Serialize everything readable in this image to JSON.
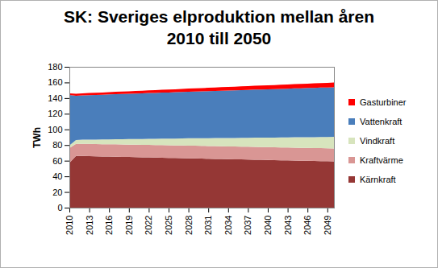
{
  "chart_data": {
    "type": "area",
    "title": "SK: Sveriges elproduktion mellan åren 2010 till 2050",
    "y_label": "TWh",
    "stacked": true,
    "grid": false,
    "legend": "right",
    "x": [
      2010,
      2011,
      2012,
      2013,
      2014,
      2015,
      2016,
      2017,
      2018,
      2019,
      2020,
      2021,
      2022,
      2023,
      2024,
      2025,
      2026,
      2027,
      2028,
      2029,
      2030,
      2031,
      2032,
      2033,
      2034,
      2035,
      2036,
      2037,
      2038,
      2039,
      2040,
      2041,
      2042,
      2043,
      2044,
      2045,
      2046,
      2047,
      2048,
      2049,
      2050
    ],
    "xlim": [
      2010,
      2050
    ],
    "xticks": [
      2010,
      2013,
      2016,
      2019,
      2022,
      2025,
      2028,
      2031,
      2034,
      2037,
      2040,
      2043,
      2046,
      2049
    ],
    "ylim": [
      0,
      180
    ],
    "yticks": [
      0,
      20,
      40,
      60,
      80,
      100,
      120,
      140,
      160,
      180
    ],
    "series": [
      {
        "name": "Kärnkraft",
        "color": "#953735",
        "values": [
          57,
          66.0,
          66.0,
          65.8,
          65.6,
          65.4,
          65.3,
          65.1,
          64.9,
          64.7,
          64.5,
          64.3,
          64.2,
          64.0,
          63.8,
          63.6,
          63.4,
          63.2,
          63.1,
          62.9,
          62.7,
          62.5,
          62.3,
          62.2,
          62.0,
          61.8,
          61.6,
          61.4,
          61.3,
          61.1,
          60.9,
          60.7,
          60.5,
          60.4,
          60.2,
          60.0,
          59.8,
          59.6,
          59.5,
          59.3,
          59.1
        ]
      },
      {
        "name": "Kraftvärme",
        "color": "#d99694",
        "values": [
          19,
          15.5,
          15.5,
          15.6,
          15.6,
          15.7,
          15.7,
          15.8,
          15.8,
          15.9,
          15.9,
          16.0,
          16.0,
          16.0,
          16.1,
          16.1,
          16.1,
          16.2,
          16.2,
          16.2,
          16.2,
          16.3,
          16.3,
          16.3,
          16.3,
          16.3,
          16.4,
          16.4,
          16.4,
          16.4,
          16.4,
          16.4,
          16.4,
          16.4,
          16.5,
          16.5,
          16.5,
          16.5,
          16.5,
          16.5,
          16.5
        ]
      },
      {
        "name": "Vindkraft",
        "color": "#d7e4bd",
        "values": [
          3.5,
          5.0,
          5.3,
          5.5,
          5.8,
          6.0,
          6.3,
          6.5,
          6.8,
          7.0,
          7.3,
          7.5,
          7.8,
          8.0,
          8.3,
          8.5,
          8.8,
          9.0,
          9.3,
          9.5,
          9.8,
          10.0,
          10.3,
          10.5,
          10.8,
          11.0,
          11.3,
          11.5,
          11.8,
          12.0,
          12.3,
          12.5,
          12.8,
          13.0,
          13.3,
          13.5,
          13.8,
          14.0,
          14.3,
          14.5,
          14.8
        ]
      },
      {
        "name": "Vattenkraft",
        "color": "#4a7ebb",
        "values": [
          64.5,
          56.5,
          56.7,
          56.9,
          57.0,
          57.2,
          57.4,
          57.6,
          57.8,
          57.9,
          58.1,
          58.3,
          58.5,
          58.7,
          58.8,
          59.0,
          59.2,
          59.4,
          59.6,
          59.7,
          59.9,
          60.1,
          60.3,
          60.5,
          60.6,
          60.8,
          61.0,
          61.2,
          61.4,
          61.5,
          61.7,
          61.9,
          62.1,
          62.3,
          62.4,
          62.6,
          62.8,
          63.0,
          63.2,
          63.3,
          63.5
        ]
      },
      {
        "name": "Gasturbiner",
        "color": "#ff0000",
        "values": [
          2.0,
          2.5,
          2.6,
          2.7,
          2.8,
          2.9,
          2.9,
          3.0,
          3.1,
          3.2,
          3.3,
          3.4,
          3.5,
          3.6,
          3.7,
          3.7,
          3.8,
          3.9,
          4.0,
          4.1,
          4.2,
          4.3,
          4.4,
          4.5,
          4.5,
          4.6,
          4.7,
          4.8,
          4.9,
          5.0,
          5.1,
          5.2,
          5.3,
          5.3,
          5.4,
          5.5,
          5.6,
          5.7,
          5.8,
          5.9,
          6.0
        ]
      }
    ]
  }
}
